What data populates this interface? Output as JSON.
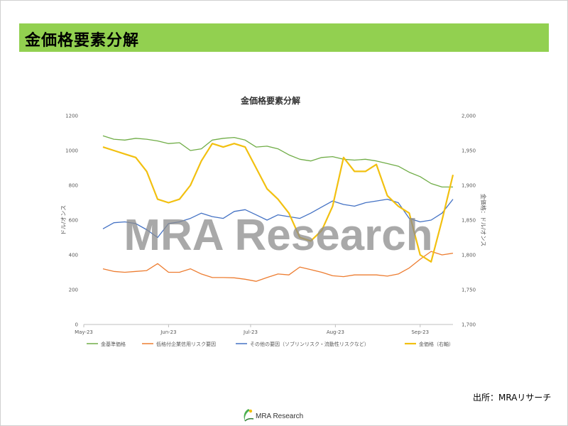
{
  "page": {
    "title": "金価格要素分解",
    "source": "出所：MRAリサーチ",
    "watermark": "MRA Research",
    "footer_logo_text": "MRA Research"
  },
  "chart_data": {
    "type": "line",
    "title": "金価格要素分解",
    "ylabel": "ドル/オンス",
    "y2label": "金価格：ドル/オンス",
    "ylim": [
      0,
      1200
    ],
    "y2lim": [
      1700,
      2000
    ],
    "yticks": [
      "0",
      "200",
      "400",
      "600",
      "800",
      "1000",
      "1200"
    ],
    "y2ticks": [
      "1,700",
      "1,750",
      "1,800",
      "1,850",
      "1,900",
      "1,950",
      "2,000"
    ],
    "xticks": [
      "May-23",
      "Jun-23",
      "Jul-23",
      "Aug-23",
      "Sep-23"
    ],
    "xlim": [
      "2023-05-01",
      "2023-09-13"
    ],
    "grid": false,
    "legend_position": "bottom",
    "dates": [
      "2023-05-08",
      "2023-05-12",
      "2023-05-16",
      "2023-05-20",
      "2023-05-24",
      "2023-05-28",
      "2023-06-01",
      "2023-06-05",
      "2023-06-09",
      "2023-06-13",
      "2023-06-17",
      "2023-06-21",
      "2023-06-25",
      "2023-06-29",
      "2023-07-03",
      "2023-07-07",
      "2023-07-11",
      "2023-07-15",
      "2023-07-19",
      "2023-07-23",
      "2023-07-27",
      "2023-07-31",
      "2023-08-04",
      "2023-08-08",
      "2023-08-12",
      "2023-08-16",
      "2023-08-20",
      "2023-08-24",
      "2023-08-28",
      "2023-09-01",
      "2023-09-05",
      "2023-09-09",
      "2023-09-13"
    ],
    "series": [
      {
        "name": "金基準価格",
        "axis": "left",
        "color": "#70ad47",
        "values": [
          1085,
          1065,
          1060,
          1070,
          1065,
          1055,
          1040,
          1045,
          1000,
          1010,
          1060,
          1070,
          1075,
          1060,
          1020,
          1025,
          1010,
          975,
          950,
          940,
          960,
          965,
          950,
          945,
          950,
          940,
          925,
          910,
          875,
          850,
          810,
          790,
          790
        ]
      },
      {
        "name": "低格付企業信用リスク要因",
        "axis": "left",
        "color": "#ed7d31",
        "values": [
          320,
          305,
          300,
          305,
          310,
          350,
          300,
          300,
          320,
          290,
          270,
          270,
          268,
          260,
          248,
          270,
          290,
          285,
          330,
          315,
          300,
          280,
          275,
          285,
          285,
          285,
          278,
          290,
          325,
          375,
          420,
          400,
          410
        ]
      },
      {
        "name": "その他の要因（ソブリンリスク・流動性リスクなど）",
        "axis": "left",
        "color": "#4472c4",
        "values": [
          550,
          585,
          590,
          580,
          545,
          500,
          580,
          590,
          610,
          640,
          620,
          610,
          650,
          660,
          630,
          600,
          630,
          620,
          610,
          640,
          675,
          710,
          690,
          680,
          700,
          710,
          720,
          700,
          610,
          590,
          600,
          640,
          720
        ]
      },
      {
        "name": "金価格（右軸）",
        "axis": "right",
        "color": "#f2c010",
        "values": [
          1955,
          1950,
          1945,
          1940,
          1920,
          1880,
          1875,
          1880,
          1900,
          1935,
          1960,
          1955,
          1960,
          1955,
          1925,
          1895,
          1880,
          1860,
          1825,
          1820,
          1835,
          1870,
          1940,
          1920,
          1920,
          1930,
          1885,
          1870,
          1860,
          1800,
          1790,
          1850,
          1915
        ]
      }
    ]
  }
}
